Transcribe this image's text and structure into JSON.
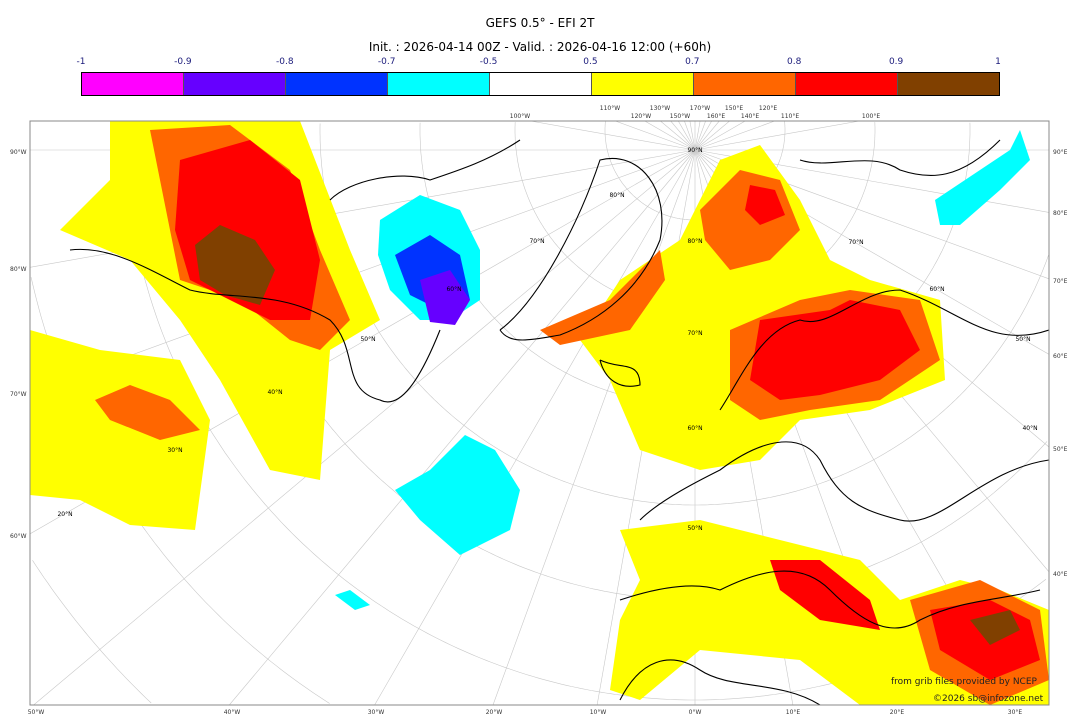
{
  "header": {
    "title": "GEFS 0.5° - EFI 2T",
    "subtitle": "Init. : 2026-04-14 00Z - Valid. : 2026-04-16 12:00 (+60h)"
  },
  "colorbar": {
    "ticks": [
      "-1",
      "-0.9",
      "-0.8",
      "-0.7",
      "-0.5",
      "0.5",
      "0.7",
      "0.8",
      "0.9",
      "1"
    ],
    "colors": [
      "#ff00ff",
      "#6600ff",
      "#0033ff",
      "#00ffff",
      "#ffffff",
      "#ffff00",
      "#ff6600",
      "#ff0000",
      "#804000"
    ]
  },
  "axes": {
    "bottom": [
      "50°W",
      "40°W",
      "30°W",
      "20°W",
      "10°W",
      "0°W",
      "10°E",
      "20°E",
      "30°E"
    ],
    "left": [
      "90°W",
      "80°W",
      "70°W",
      "60°W"
    ],
    "right": [
      "90°E",
      "80°E",
      "70°E",
      "60°E",
      "50°E",
      "40°E"
    ],
    "top": [
      "100°W",
      "110°W",
      "120°W",
      "130°W",
      "150°W",
      "170°W",
      "160°E",
      "150°E",
      "140°E",
      "120°E",
      "110°E",
      "100°E"
    ],
    "lat_labels": [
      "90°N",
      "80°N",
      "70°N",
      "60°N",
      "50°N",
      "40°N",
      "30°N",
      "20°N",
      "80°N",
      "70°N",
      "60°N",
      "50°N",
      "40°N",
      "70°N",
      "60°N",
      "50°N"
    ]
  },
  "credits": {
    "source": "from grib files provided by NCEP",
    "copyright": "©2026 sb@infozone.net"
  }
}
